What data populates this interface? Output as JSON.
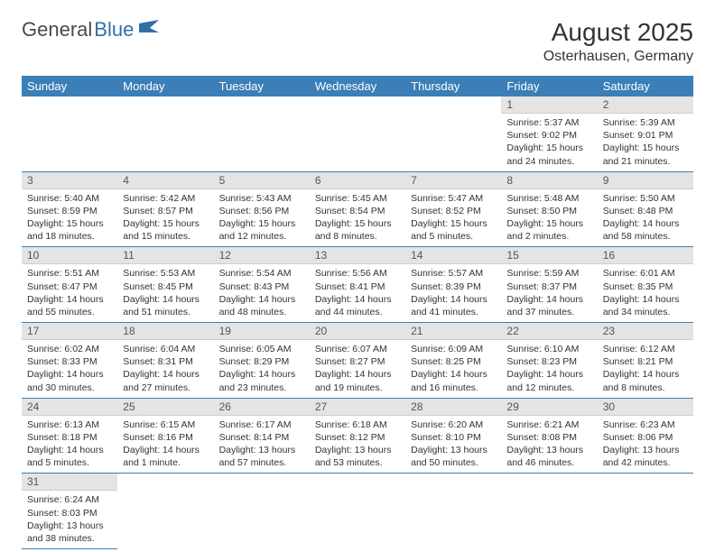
{
  "logo": {
    "text1": "General",
    "text2": "Blue"
  },
  "header": {
    "title": "August 2025",
    "location": "Osterhausen, Germany"
  },
  "colors": {
    "header_bg": "#3b7fb6",
    "header_fg": "#ffffff",
    "daynum_bg": "#e4e4e4",
    "cell_border": "#3b7fb6",
    "logo_blue": "#2f6fa8"
  },
  "weekdays": [
    "Sunday",
    "Monday",
    "Tuesday",
    "Wednesday",
    "Thursday",
    "Friday",
    "Saturday"
  ],
  "weeks": [
    [
      null,
      null,
      null,
      null,
      null,
      {
        "n": "1",
        "sr": "Sunrise: 5:37 AM",
        "ss": "Sunset: 9:02 PM",
        "d1": "Daylight: 15 hours",
        "d2": "and 24 minutes."
      },
      {
        "n": "2",
        "sr": "Sunrise: 5:39 AM",
        "ss": "Sunset: 9:01 PM",
        "d1": "Daylight: 15 hours",
        "d2": "and 21 minutes."
      }
    ],
    [
      {
        "n": "3",
        "sr": "Sunrise: 5:40 AM",
        "ss": "Sunset: 8:59 PM",
        "d1": "Daylight: 15 hours",
        "d2": "and 18 minutes."
      },
      {
        "n": "4",
        "sr": "Sunrise: 5:42 AM",
        "ss": "Sunset: 8:57 PM",
        "d1": "Daylight: 15 hours",
        "d2": "and 15 minutes."
      },
      {
        "n": "5",
        "sr": "Sunrise: 5:43 AM",
        "ss": "Sunset: 8:56 PM",
        "d1": "Daylight: 15 hours",
        "d2": "and 12 minutes."
      },
      {
        "n": "6",
        "sr": "Sunrise: 5:45 AM",
        "ss": "Sunset: 8:54 PM",
        "d1": "Daylight: 15 hours",
        "d2": "and 8 minutes."
      },
      {
        "n": "7",
        "sr": "Sunrise: 5:47 AM",
        "ss": "Sunset: 8:52 PM",
        "d1": "Daylight: 15 hours",
        "d2": "and 5 minutes."
      },
      {
        "n": "8",
        "sr": "Sunrise: 5:48 AM",
        "ss": "Sunset: 8:50 PM",
        "d1": "Daylight: 15 hours",
        "d2": "and 2 minutes."
      },
      {
        "n": "9",
        "sr": "Sunrise: 5:50 AM",
        "ss": "Sunset: 8:48 PM",
        "d1": "Daylight: 14 hours",
        "d2": "and 58 minutes."
      }
    ],
    [
      {
        "n": "10",
        "sr": "Sunrise: 5:51 AM",
        "ss": "Sunset: 8:47 PM",
        "d1": "Daylight: 14 hours",
        "d2": "and 55 minutes."
      },
      {
        "n": "11",
        "sr": "Sunrise: 5:53 AM",
        "ss": "Sunset: 8:45 PM",
        "d1": "Daylight: 14 hours",
        "d2": "and 51 minutes."
      },
      {
        "n": "12",
        "sr": "Sunrise: 5:54 AM",
        "ss": "Sunset: 8:43 PM",
        "d1": "Daylight: 14 hours",
        "d2": "and 48 minutes."
      },
      {
        "n": "13",
        "sr": "Sunrise: 5:56 AM",
        "ss": "Sunset: 8:41 PM",
        "d1": "Daylight: 14 hours",
        "d2": "and 44 minutes."
      },
      {
        "n": "14",
        "sr": "Sunrise: 5:57 AM",
        "ss": "Sunset: 8:39 PM",
        "d1": "Daylight: 14 hours",
        "d2": "and 41 minutes."
      },
      {
        "n": "15",
        "sr": "Sunrise: 5:59 AM",
        "ss": "Sunset: 8:37 PM",
        "d1": "Daylight: 14 hours",
        "d2": "and 37 minutes."
      },
      {
        "n": "16",
        "sr": "Sunrise: 6:01 AM",
        "ss": "Sunset: 8:35 PM",
        "d1": "Daylight: 14 hours",
        "d2": "and 34 minutes."
      }
    ],
    [
      {
        "n": "17",
        "sr": "Sunrise: 6:02 AM",
        "ss": "Sunset: 8:33 PM",
        "d1": "Daylight: 14 hours",
        "d2": "and 30 minutes."
      },
      {
        "n": "18",
        "sr": "Sunrise: 6:04 AM",
        "ss": "Sunset: 8:31 PM",
        "d1": "Daylight: 14 hours",
        "d2": "and 27 minutes."
      },
      {
        "n": "19",
        "sr": "Sunrise: 6:05 AM",
        "ss": "Sunset: 8:29 PM",
        "d1": "Daylight: 14 hours",
        "d2": "and 23 minutes."
      },
      {
        "n": "20",
        "sr": "Sunrise: 6:07 AM",
        "ss": "Sunset: 8:27 PM",
        "d1": "Daylight: 14 hours",
        "d2": "and 19 minutes."
      },
      {
        "n": "21",
        "sr": "Sunrise: 6:09 AM",
        "ss": "Sunset: 8:25 PM",
        "d1": "Daylight: 14 hours",
        "d2": "and 16 minutes."
      },
      {
        "n": "22",
        "sr": "Sunrise: 6:10 AM",
        "ss": "Sunset: 8:23 PM",
        "d1": "Daylight: 14 hours",
        "d2": "and 12 minutes."
      },
      {
        "n": "23",
        "sr": "Sunrise: 6:12 AM",
        "ss": "Sunset: 8:21 PM",
        "d1": "Daylight: 14 hours",
        "d2": "and 8 minutes."
      }
    ],
    [
      {
        "n": "24",
        "sr": "Sunrise: 6:13 AM",
        "ss": "Sunset: 8:18 PM",
        "d1": "Daylight: 14 hours",
        "d2": "and 5 minutes."
      },
      {
        "n": "25",
        "sr": "Sunrise: 6:15 AM",
        "ss": "Sunset: 8:16 PM",
        "d1": "Daylight: 14 hours",
        "d2": "and 1 minute."
      },
      {
        "n": "26",
        "sr": "Sunrise: 6:17 AM",
        "ss": "Sunset: 8:14 PM",
        "d1": "Daylight: 13 hours",
        "d2": "and 57 minutes."
      },
      {
        "n": "27",
        "sr": "Sunrise: 6:18 AM",
        "ss": "Sunset: 8:12 PM",
        "d1": "Daylight: 13 hours",
        "d2": "and 53 minutes."
      },
      {
        "n": "28",
        "sr": "Sunrise: 6:20 AM",
        "ss": "Sunset: 8:10 PM",
        "d1": "Daylight: 13 hours",
        "d2": "and 50 minutes."
      },
      {
        "n": "29",
        "sr": "Sunrise: 6:21 AM",
        "ss": "Sunset: 8:08 PM",
        "d1": "Daylight: 13 hours",
        "d2": "and 46 minutes."
      },
      {
        "n": "30",
        "sr": "Sunrise: 6:23 AM",
        "ss": "Sunset: 8:06 PM",
        "d1": "Daylight: 13 hours",
        "d2": "and 42 minutes."
      }
    ],
    [
      {
        "n": "31",
        "sr": "Sunrise: 6:24 AM",
        "ss": "Sunset: 8:03 PM",
        "d1": "Daylight: 13 hours",
        "d2": "and 38 minutes."
      },
      null,
      null,
      null,
      null,
      null,
      null
    ]
  ]
}
